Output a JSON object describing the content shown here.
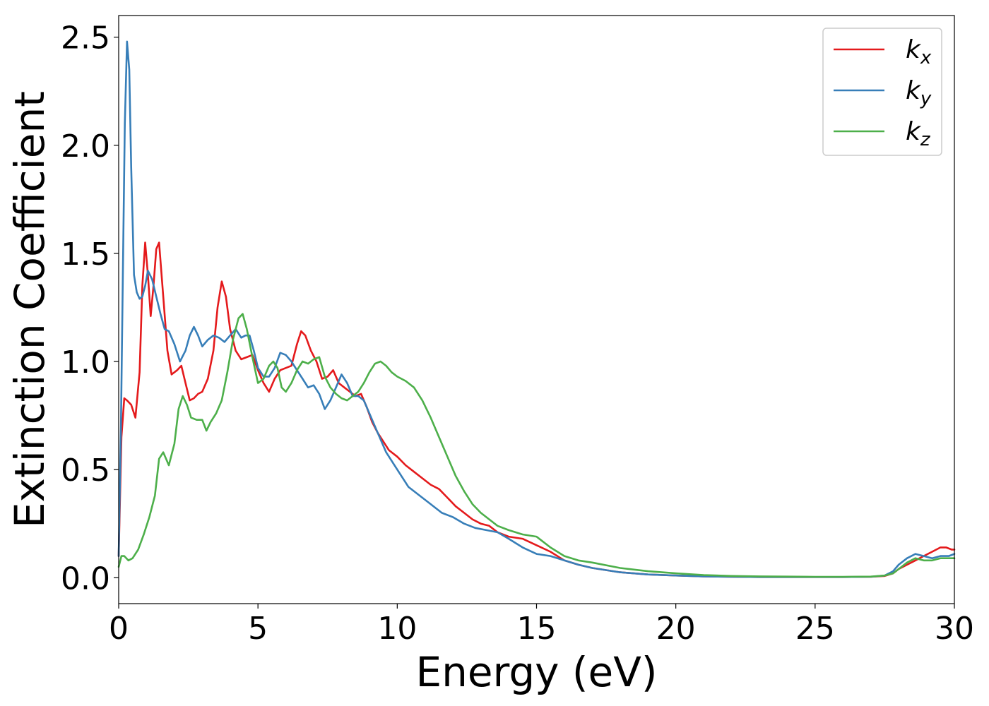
{
  "chart_data": {
    "type": "line",
    "xlabel": "Energy (eV)",
    "ylabel": "Extinction Coefficient",
    "xlim": [
      0,
      30
    ],
    "ylim": [
      -0.12,
      2.6
    ],
    "xticks": [
      0,
      5,
      10,
      15,
      20,
      25,
      30
    ],
    "yticks": [
      0.0,
      0.5,
      1.0,
      1.5,
      2.0,
      2.5
    ],
    "xtick_labels": [
      "0",
      "5",
      "10",
      "15",
      "20",
      "25",
      "30"
    ],
    "ytick_labels": [
      "0.0",
      "0.5",
      "1.0",
      "1.5",
      "2.0",
      "2.5"
    ],
    "grid": false,
    "legend_position": "top-right",
    "series": [
      {
        "name": "k",
        "subscript": "x",
        "color": "#e41a1c",
        "x": [
          0,
          0.1,
          0.2,
          0.3,
          0.45,
          0.6,
          0.75,
          0.85,
          0.95,
          1.05,
          1.15,
          1.25,
          1.35,
          1.45,
          1.6,
          1.75,
          1.9,
          2.1,
          2.25,
          2.4,
          2.55,
          2.7,
          2.85,
          3.0,
          3.2,
          3.4,
          3.55,
          3.7,
          3.85,
          4.0,
          4.2,
          4.4,
          4.6,
          4.8,
          5.0,
          5.2,
          5.4,
          5.6,
          5.8,
          6.0,
          6.2,
          6.4,
          6.55,
          6.7,
          6.9,
          7.1,
          7.3,
          7.5,
          7.7,
          7.9,
          8.1,
          8.3,
          8.5,
          8.7,
          8.9,
          9.1,
          9.3,
          9.5,
          9.7,
          10.0,
          10.3,
          10.6,
          10.9,
          11.2,
          11.5,
          11.8,
          12.1,
          12.4,
          12.7,
          13.0,
          13.3,
          13.6,
          14.0,
          14.5,
          15.0,
          15.5,
          16.0,
          16.5,
          17.0,
          18.0,
          19.0,
          20.0,
          21.0,
          22.0,
          23.0,
          24.0,
          25.0,
          26.0,
          27.0,
          27.5,
          27.8,
          28.0,
          28.3,
          28.6,
          28.9,
          29.2,
          29.5,
          29.7,
          29.9,
          30.0
        ],
        "y": [
          0.1,
          0.65,
          0.83,
          0.82,
          0.8,
          0.74,
          0.95,
          1.35,
          1.55,
          1.4,
          1.21,
          1.35,
          1.52,
          1.55,
          1.3,
          1.05,
          0.94,
          0.96,
          0.98,
          0.9,
          0.82,
          0.83,
          0.85,
          0.86,
          0.92,
          1.05,
          1.25,
          1.37,
          1.3,
          1.15,
          1.05,
          1.01,
          1.02,
          1.03,
          0.96,
          0.9,
          0.86,
          0.92,
          0.96,
          0.97,
          0.98,
          1.08,
          1.14,
          1.12,
          1.05,
          1.0,
          0.92,
          0.93,
          0.96,
          0.9,
          0.88,
          0.86,
          0.84,
          0.85,
          0.79,
          0.72,
          0.67,
          0.63,
          0.59,
          0.56,
          0.52,
          0.49,
          0.46,
          0.43,
          0.41,
          0.37,
          0.33,
          0.3,
          0.27,
          0.25,
          0.24,
          0.21,
          0.19,
          0.18,
          0.15,
          0.12,
          0.08,
          0.06,
          0.045,
          0.025,
          0.015,
          0.01,
          0.006,
          0.004,
          0.003,
          0.003,
          0.003,
          0.003,
          0.004,
          0.008,
          0.02,
          0.04,
          0.06,
          0.08,
          0.1,
          0.12,
          0.14,
          0.14,
          0.13,
          0.13
        ]
      },
      {
        "name": "k",
        "subscript": "y",
        "color": "#377eb8",
        "x": [
          0,
          0.08,
          0.15,
          0.22,
          0.3,
          0.38,
          0.45,
          0.55,
          0.65,
          0.75,
          0.85,
          0.95,
          1.05,
          1.2,
          1.35,
          1.5,
          1.65,
          1.8,
          2.0,
          2.2,
          2.4,
          2.55,
          2.7,
          2.85,
          3.0,
          3.2,
          3.4,
          3.6,
          3.8,
          4.0,
          4.2,
          4.4,
          4.55,
          4.7,
          4.85,
          5.0,
          5.2,
          5.4,
          5.6,
          5.8,
          6.0,
          6.2,
          6.4,
          6.6,
          6.8,
          7.0,
          7.2,
          7.4,
          7.6,
          7.8,
          8.0,
          8.2,
          8.4,
          8.6,
          8.8,
          9.0,
          9.3,
          9.6,
          10.0,
          10.4,
          10.8,
          11.2,
          11.6,
          12.0,
          12.4,
          12.8,
          13.2,
          13.6,
          14.0,
          14.5,
          15.0,
          15.5,
          16.0,
          16.5,
          17.0,
          18.0,
          19.0,
          20.0,
          21.0,
          22.0,
          23.0,
          24.0,
          25.0,
          26.0,
          27.0,
          27.5,
          27.8,
          28.0,
          28.3,
          28.6,
          28.9,
          29.2,
          29.5,
          29.8,
          30.0
        ],
        "y": [
          0.1,
          0.7,
          1.4,
          2.1,
          2.48,
          2.35,
          1.9,
          1.4,
          1.32,
          1.29,
          1.3,
          1.35,
          1.42,
          1.38,
          1.3,
          1.22,
          1.15,
          1.14,
          1.08,
          1.0,
          1.05,
          1.12,
          1.16,
          1.12,
          1.07,
          1.1,
          1.12,
          1.11,
          1.09,
          1.12,
          1.15,
          1.11,
          1.12,
          1.12,
          1.05,
          0.97,
          0.93,
          0.93,
          0.97,
          1.04,
          1.03,
          1.0,
          0.96,
          0.92,
          0.88,
          0.89,
          0.85,
          0.78,
          0.82,
          0.88,
          0.94,
          0.9,
          0.84,
          0.84,
          0.82,
          0.76,
          0.67,
          0.58,
          0.5,
          0.42,
          0.38,
          0.34,
          0.3,
          0.28,
          0.25,
          0.23,
          0.22,
          0.21,
          0.18,
          0.14,
          0.11,
          0.1,
          0.08,
          0.06,
          0.045,
          0.025,
          0.015,
          0.01,
          0.006,
          0.004,
          0.003,
          0.003,
          0.003,
          0.003,
          0.004,
          0.01,
          0.03,
          0.06,
          0.09,
          0.11,
          0.1,
          0.09,
          0.1,
          0.1,
          0.11
        ]
      },
      {
        "name": "k",
        "subscript": "z",
        "color": "#4daf4a",
        "x": [
          0,
          0.1,
          0.2,
          0.35,
          0.5,
          0.7,
          0.9,
          1.1,
          1.3,
          1.45,
          1.6,
          1.8,
          2.0,
          2.15,
          2.3,
          2.45,
          2.6,
          2.8,
          3.0,
          3.15,
          3.3,
          3.5,
          3.7,
          3.9,
          4.1,
          4.3,
          4.45,
          4.6,
          4.8,
          5.0,
          5.2,
          5.4,
          5.55,
          5.7,
          5.85,
          6.0,
          6.2,
          6.4,
          6.6,
          6.8,
          7.0,
          7.2,
          7.4,
          7.6,
          7.8,
          8.0,
          8.2,
          8.4,
          8.6,
          8.8,
          9.0,
          9.2,
          9.4,
          9.6,
          9.8,
          10.0,
          10.3,
          10.6,
          10.9,
          11.2,
          11.5,
          11.8,
          12.1,
          12.4,
          12.7,
          13.0,
          13.3,
          13.6,
          14.0,
          14.5,
          15.0,
          15.5,
          16.0,
          16.5,
          17.0,
          18.0,
          19.0,
          20.0,
          21.0,
          22.0,
          23.0,
          24.0,
          25.0,
          26.0,
          27.0,
          27.5,
          27.8,
          28.0,
          28.3,
          28.6,
          28.9,
          29.2,
          29.5,
          29.8,
          30.0
        ],
        "y": [
          0.05,
          0.1,
          0.1,
          0.08,
          0.09,
          0.13,
          0.2,
          0.28,
          0.38,
          0.55,
          0.58,
          0.52,
          0.62,
          0.78,
          0.84,
          0.8,
          0.74,
          0.73,
          0.73,
          0.68,
          0.72,
          0.76,
          0.82,
          0.95,
          1.1,
          1.2,
          1.22,
          1.15,
          1.02,
          0.9,
          0.92,
          0.98,
          1.0,
          0.97,
          0.88,
          0.86,
          0.9,
          0.96,
          1.0,
          0.99,
          1.01,
          1.02,
          0.93,
          0.88,
          0.85,
          0.83,
          0.82,
          0.84,
          0.86,
          0.9,
          0.95,
          0.99,
          1.0,
          0.98,
          0.95,
          0.93,
          0.91,
          0.88,
          0.82,
          0.74,
          0.65,
          0.56,
          0.47,
          0.4,
          0.34,
          0.3,
          0.27,
          0.24,
          0.22,
          0.2,
          0.19,
          0.14,
          0.1,
          0.08,
          0.07,
          0.045,
          0.03,
          0.02,
          0.012,
          0.008,
          0.006,
          0.005,
          0.004,
          0.004,
          0.005,
          0.01,
          0.02,
          0.04,
          0.07,
          0.09,
          0.08,
          0.08,
          0.09,
          0.09,
          0.09
        ]
      }
    ]
  }
}
